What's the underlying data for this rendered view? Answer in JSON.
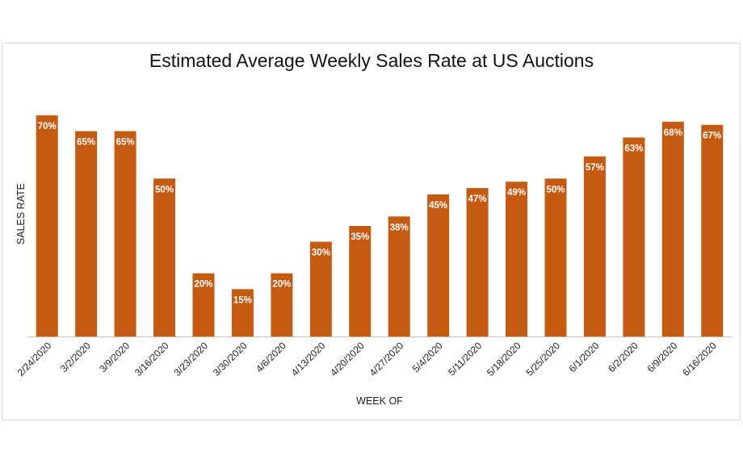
{
  "chart_data": {
    "type": "bar",
    "title": "Estimated Average Weekly Sales Rate at US Auctions",
    "xlabel": "WEEK OF",
    "ylabel": "SALES RATE",
    "categories": [
      "2/24/2020",
      "3/2/2020",
      "3/9/2020",
      "3/16/2020",
      "3/23/2020",
      "3/30/2020",
      "4/6/2020",
      "4/13/2020",
      "4/20/2020",
      "4/27/2020",
      "5/4/2020",
      "5/11/2020",
      "5/18/2020",
      "5/25/2020",
      "6/1/2020",
      "6/2/2020",
      "6/9/2020",
      "6/16/2020"
    ],
    "values": [
      70,
      65,
      65,
      50,
      20,
      15,
      20,
      30,
      35,
      38,
      45,
      47,
      49,
      50,
      57,
      63,
      68,
      67
    ],
    "value_format": "percent",
    "ylim": [
      0,
      70
    ],
    "grid": false,
    "legend": "none",
    "bar_color": "#C55A11",
    "label_color": "#ffffff"
  }
}
